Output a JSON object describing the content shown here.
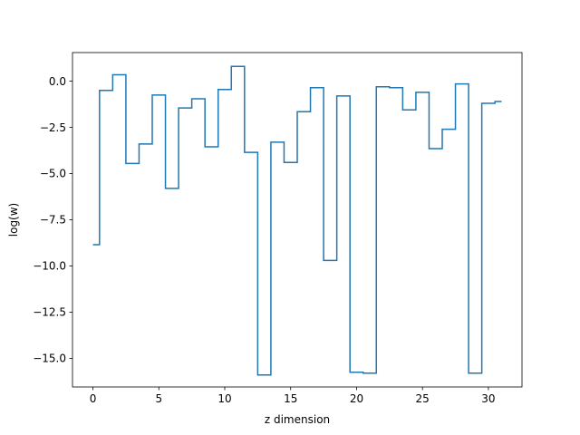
{
  "chart_data": {
    "type": "line",
    "drawstyle": "steps-mid",
    "xlabel": "z dimension",
    "ylabel": "log(w)",
    "xlim": [
      -1.55,
      32.55
    ],
    "ylim": [
      -16.55,
      1.55
    ],
    "grid": false,
    "x_ticks": [
      0,
      5,
      10,
      15,
      20,
      25,
      30
    ],
    "y_ticks": [
      0.0,
      -2.5,
      -5.0,
      -7.5,
      -10.0,
      -12.5,
      -15.0
    ],
    "x_tick_labels": [
      "0",
      "5",
      "10",
      "15",
      "20",
      "25",
      "30"
    ],
    "y_tick_labels": [
      "0.0",
      "−2.5",
      "−5.0",
      "−7.5",
      "−10.0",
      "−12.5",
      "−15.0"
    ],
    "line_color": "#1f77b4",
    "series": [
      {
        "x": [
          0,
          1,
          2,
          3,
          4,
          5,
          6,
          7,
          8,
          9,
          10,
          11,
          12,
          13,
          14,
          15,
          16,
          17,
          18,
          19,
          20,
          21,
          22,
          23,
          24,
          25,
          26,
          27,
          28,
          29,
          30,
          31
        ],
        "values": [
          -8.85,
          -0.5,
          0.35,
          -4.45,
          -3.4,
          -0.75,
          -5.8,
          -1.45,
          -0.95,
          -3.55,
          -0.45,
          0.8,
          -3.85,
          -15.9,
          -3.3,
          -4.4,
          -1.65,
          -0.35,
          -9.7,
          -0.8,
          -15.75,
          -15.8,
          -0.3,
          -0.35,
          -1.55,
          -0.6,
          -3.65,
          -2.6,
          -0.15,
          -15.8,
          -1.2,
          -1.1
        ]
      }
    ]
  }
}
